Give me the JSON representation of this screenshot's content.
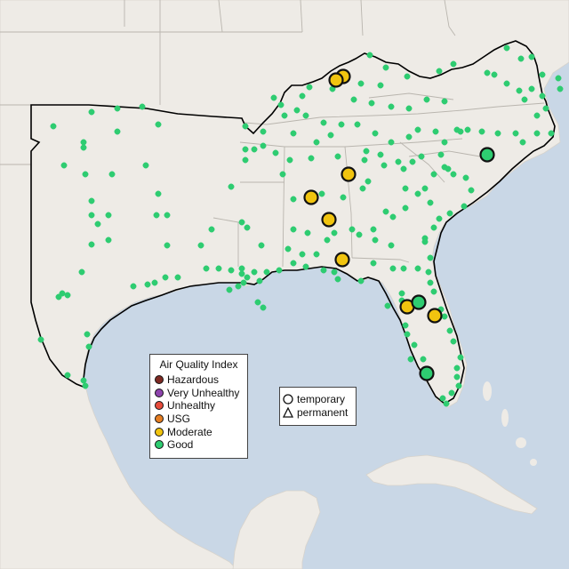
{
  "map": {
    "ocean_color": "#c9d7e6",
    "land_color": "#eeebe6",
    "good_color": "#2ecc71",
    "moderate_color": "#f1c40f"
  },
  "legend": {
    "title": "Air Quality Index",
    "items": [
      {
        "label": "Hazardous",
        "color": "#7e2a23"
      },
      {
        "label": "Very Unhealthy",
        "color": "#8e44ad"
      },
      {
        "label": "Unhealthy",
        "color": "#e74c3c"
      },
      {
        "label": "USG",
        "color": "#e67e22"
      },
      {
        "label": "Moderate",
        "color": "#f1c40f"
      },
      {
        "label": "Good",
        "color": "#2ecc71"
      }
    ]
  },
  "monitor_legend": {
    "items": [
      {
        "label": "temporary",
        "shape": "circle-icon"
      },
      {
        "label": "permanent",
        "shape": "triangle-icon"
      }
    ]
  }
}
